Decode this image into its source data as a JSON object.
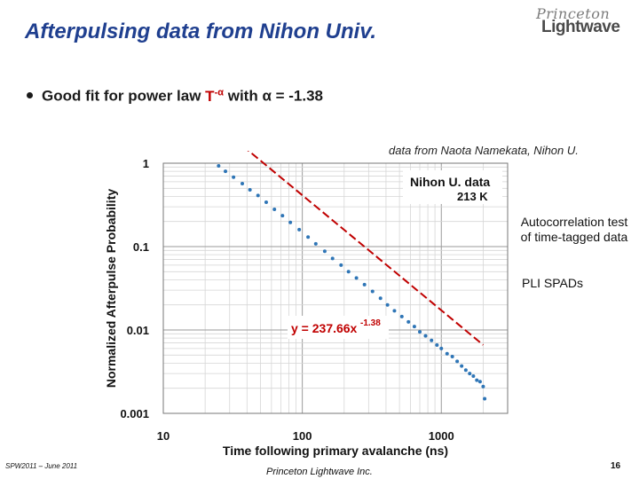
{
  "slide": {
    "title": "Afterpulsing data from Nihon Univ.",
    "logo_top": "Princeton",
    "logo_bottom": "Lightwave",
    "bullet_prefix": "Good fit for power law ",
    "bullet_T": "T",
    "bullet_exp": "-α",
    "bullet_suffix": " with α = -1.38",
    "source": "data from Naota Namekata, Nihon U.",
    "side_note": "Autocorrelation test of time-tagged data",
    "pli_note": "PLI SPADs",
    "footer_left": "SPW2011 – June 2011",
    "footer_mid": "Princeton Lightwave Inc.",
    "page_number": "16"
  },
  "chart_data": {
    "type": "scatter",
    "xlabel": "Time following primary avalanche (ns)",
    "ylabel": "Normalized Afterpulse Probability",
    "x_scale": "log",
    "y_scale": "log",
    "xlim": [
      10,
      3000
    ],
    "ylim": [
      0.001,
      1
    ],
    "x_ticks": [
      "10",
      "100",
      "1000"
    ],
    "y_ticks": [
      "1",
      "0.1",
      "0.01",
      "0.001"
    ],
    "grid": true,
    "legend_box": {
      "line1": "Nihon U. data",
      "line2": "213 K"
    },
    "fit": {
      "label": "y = 237.66x",
      "exponent_label": "-1.38",
      "a": 237.66,
      "b": -1.38,
      "color": "#c00000"
    },
    "marker_color": "#2e75b6",
    "series": [
      {
        "name": "Nihon U. data",
        "points": [
          [
            25,
            0.93
          ],
          [
            28,
            0.8
          ],
          [
            32,
            0.68
          ],
          [
            37,
            0.57
          ],
          [
            42,
            0.48
          ],
          [
            48,
            0.41
          ],
          [
            55,
            0.34
          ],
          [
            63,
            0.28
          ],
          [
            72,
            0.235
          ],
          [
            82,
            0.195
          ],
          [
            95,
            0.16
          ],
          [
            110,
            0.13
          ],
          [
            125,
            0.108
          ],
          [
            145,
            0.088
          ],
          [
            165,
            0.072
          ],
          [
            190,
            0.06
          ],
          [
            215,
            0.05
          ],
          [
            245,
            0.042
          ],
          [
            280,
            0.035
          ],
          [
            320,
            0.029
          ],
          [
            365,
            0.024
          ],
          [
            410,
            0.02
          ],
          [
            460,
            0.017
          ],
          [
            520,
            0.0145
          ],
          [
            580,
            0.0125
          ],
          [
            640,
            0.011
          ],
          [
            700,
            0.0095
          ],
          [
            770,
            0.0085
          ],
          [
            850,
            0.0075
          ],
          [
            930,
            0.0066
          ],
          [
            1000,
            0.006
          ],
          [
            1100,
            0.0052
          ],
          [
            1200,
            0.0048
          ],
          [
            1300,
            0.0042
          ],
          [
            1400,
            0.0037
          ],
          [
            1500,
            0.0033
          ],
          [
            1600,
            0.003
          ],
          [
            1700,
            0.0028
          ],
          [
            1800,
            0.0025
          ],
          [
            1900,
            0.0024
          ],
          [
            2000,
            0.0021
          ],
          [
            2050,
            0.0015
          ]
        ]
      }
    ]
  }
}
